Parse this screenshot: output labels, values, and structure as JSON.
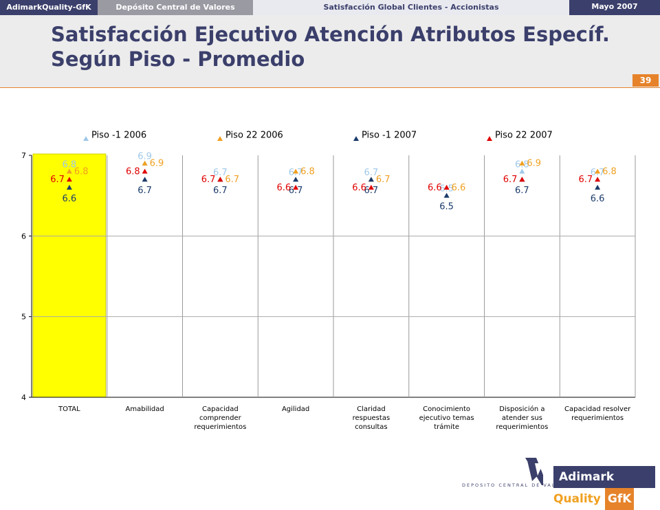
{
  "header": {
    "brand": "AdimarkQuality-GfK",
    "client": "Depósito Central de Valores",
    "study": "Satisfacción Global Clientes - Accionistas",
    "date": "Mayo 2007",
    "title_line1": "Satisfacción Ejecutivo Atención Atributos Específ.",
    "title_line2": "Según Piso - Promedio",
    "page_number": "39"
  },
  "logos": {
    "dcv_text": "DEPOSITO CENTRAL DE VALORES",
    "gfk_a": "Adimark",
    "gfk_q": "Quality",
    "gfk_g": "GfK"
  },
  "chart_data": {
    "type": "scatter",
    "categories": [
      [
        "TOTAL"
      ],
      [
        "Amabilidad"
      ],
      [
        "Capacidad",
        "comprender",
        "requerimientos"
      ],
      [
        "Agilidad"
      ],
      [
        "Claridad",
        "respuestas",
        "consultas"
      ],
      [
        "Conocimiento",
        "ejecutivo temas",
        "trámite"
      ],
      [
        "Disposición a",
        "atender sus",
        "requerimientos"
      ],
      [
        "Capacidad resolver",
        "requerimientos"
      ]
    ],
    "ylim": [
      4,
      7
    ],
    "yticks": [
      4,
      5,
      6,
      7
    ],
    "highlight_category": 0,
    "highlight_color": "#ffff00",
    "series": [
      {
        "name": "Piso -1 2006",
        "color": "#9fc8e8",
        "values": [
          6.8,
          6.9,
          6.7,
          6.7,
          6.7,
          6.5,
          6.8,
          6.7
        ]
      },
      {
        "name": "Piso 22 2006",
        "color": "#f0a020",
        "values": [
          6.8,
          6.9,
          6.7,
          6.8,
          6.7,
          6.6,
          6.9,
          6.8
        ]
      },
      {
        "name": "Piso -1 2007",
        "color": "#1a3a6a",
        "values": [
          6.6,
          6.7,
          6.7,
          6.7,
          6.7,
          6.5,
          6.7,
          6.6
        ]
      },
      {
        "name": "Piso 22 2007",
        "color": "#e00000",
        "values": [
          6.7,
          6.8,
          6.7,
          6.6,
          6.6,
          6.6,
          6.7,
          6.7
        ]
      }
    ]
  }
}
